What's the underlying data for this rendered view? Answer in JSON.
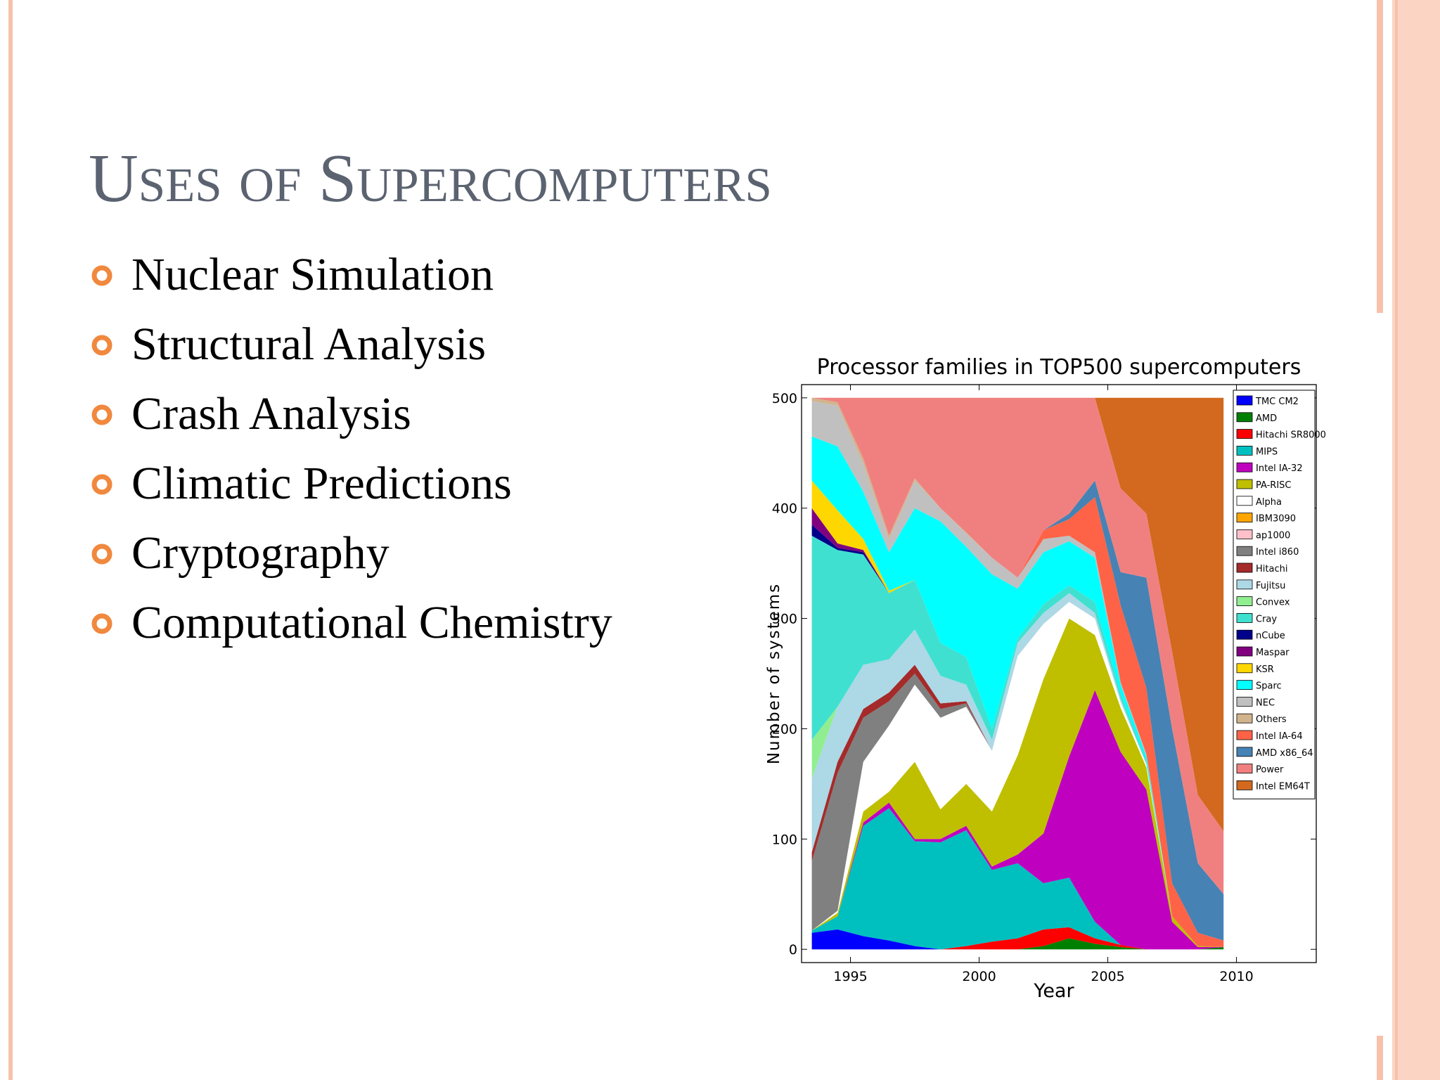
{
  "slide": {
    "title": "Uses of Supercomputers",
    "bullets": [
      "Nuclear Simulation",
      "Structural Analysis",
      "Crash Analysis",
      "Climatic Predictions",
      "Cryptography",
      "Computational Chemistry"
    ]
  },
  "chart_data": {
    "type": "stacked_area",
    "title": "Processor families in TOP500 supercomputers",
    "x_label": "Year",
    "y_label": "Number of systems",
    "x": [
      1993.5,
      1994.5,
      1995.5,
      1996.5,
      1997.5,
      1998.5,
      1999.5,
      2000.5,
      2001.5,
      2002.5,
      2003.5,
      2004.5,
      2005.5,
      2006.5,
      2007.5,
      2008.5,
      2009.5
    ],
    "xlim": [
      1993.1,
      2013.1
    ],
    "xticks": [
      1995,
      2000,
      2005,
      2010
    ],
    "ylim": [
      -12,
      512
    ],
    "yticks": [
      0,
      100,
      200,
      300,
      400,
      500
    ],
    "grid": false,
    "legend": "upper right",
    "series": [
      {
        "name": "TMC CM2",
        "color": "#0000ff",
        "values": [
          15,
          18,
          12,
          8,
          3,
          0,
          0,
          0,
          0,
          0,
          0,
          0,
          0,
          0,
          0,
          0,
          0
        ]
      },
      {
        "name": "AMD",
        "color": "#008000",
        "values": [
          0,
          0,
          0,
          0,
          0,
          0,
          0,
          0,
          0,
          3,
          10,
          5,
          2,
          0,
          0,
          0,
          2
        ]
      },
      {
        "name": "Hitachi SR8000",
        "color": "#ff0000",
        "values": [
          0,
          0,
          0,
          0,
          0,
          0,
          3,
          7,
          10,
          15,
          10,
          5,
          2,
          0,
          0,
          0,
          0
        ]
      },
      {
        "name": "MIPS",
        "color": "#00bfbf",
        "values": [
          2,
          12,
          100,
          120,
          95,
          97,
          105,
          65,
          68,
          42,
          45,
          15,
          0,
          0,
          0,
          0,
          0
        ]
      },
      {
        "name": "Intel IA-32",
        "color": "#bf00bf",
        "values": [
          0,
          0,
          3,
          5,
          2,
          3,
          4,
          3,
          8,
          45,
          110,
          210,
          175,
          145,
          25,
          2,
          0
        ]
      },
      {
        "name": "PA-RISC",
        "color": "#bfbf00",
        "values": [
          0,
          3,
          10,
          10,
          70,
          27,
          38,
          50,
          90,
          140,
          125,
          50,
          40,
          20,
          5,
          1,
          0
        ]
      },
      {
        "name": "Alpha",
        "color": "#ffffff",
        "values": [
          0,
          2,
          45,
          60,
          70,
          83,
          70,
          55,
          90,
          50,
          15,
          15,
          5,
          3,
          0,
          0,
          0
        ]
      },
      {
        "name": "IBM3090",
        "color": "#ffa500",
        "values": [
          0,
          0,
          0,
          0,
          0,
          0,
          0,
          0,
          0,
          0,
          0,
          0,
          0,
          0,
          0,
          0,
          0
        ]
      },
      {
        "name": "ap1000",
        "color": "#ffc0cb",
        "values": [
          0,
          0,
          0,
          0,
          0,
          0,
          0,
          0,
          0,
          0,
          0,
          0,
          0,
          0,
          0,
          0,
          0
        ]
      },
      {
        "name": "Intel i860",
        "color": "#808080",
        "values": [
          63,
          125,
          40,
          22,
          10,
          8,
          3,
          0,
          0,
          0,
          0,
          0,
          0,
          0,
          0,
          0,
          0
        ]
      },
      {
        "name": "Hitachi",
        "color": "#a52a2a",
        "values": [
          8,
          10,
          8,
          8,
          8,
          5,
          2,
          0,
          0,
          0,
          0,
          0,
          0,
          0,
          0,
          0,
          0
        ]
      },
      {
        "name": "Fujitsu",
        "color": "#add8e6",
        "values": [
          67,
          50,
          40,
          30,
          32,
          25,
          15,
          10,
          12,
          10,
          8,
          5,
          3,
          0,
          0,
          0,
          0
        ]
      },
      {
        "name": "Convex",
        "color": "#90ee90",
        "values": [
          35,
          0,
          0,
          0,
          0,
          0,
          0,
          0,
          0,
          0,
          0,
          0,
          0,
          0,
          0,
          0,
          0
        ]
      },
      {
        "name": "Cray",
        "color": "#40e0d0",
        "values": [
          185,
          142,
          100,
          60,
          45,
          30,
          25,
          10,
          4,
          8,
          7,
          10,
          5,
          3,
          0,
          0,
          0
        ]
      },
      {
        "name": "nCube",
        "color": "#00008b",
        "values": [
          10,
          2,
          2,
          0,
          0,
          0,
          0,
          0,
          0,
          0,
          0,
          0,
          0,
          0,
          0,
          0,
          0
        ]
      },
      {
        "name": "Maspar",
        "color": "#800080",
        "values": [
          15,
          4,
          2,
          0,
          0,
          0,
          0,
          0,
          0,
          0,
          0,
          0,
          0,
          0,
          0,
          0,
          0
        ]
      },
      {
        "name": "KSR",
        "color": "#ffd700",
        "values": [
          25,
          30,
          10,
          2,
          0,
          0,
          0,
          0,
          0,
          0,
          0,
          0,
          0,
          0,
          0,
          0,
          0
        ]
      },
      {
        "name": "Sparc",
        "color": "#00ffff",
        "values": [
          40,
          58,
          43,
          35,
          65,
          110,
          100,
          140,
          45,
          47,
          40,
          40,
          8,
          4,
          0,
          0,
          0
        ]
      },
      {
        "name": "NEC",
        "color": "#c0c0c0",
        "values": [
          32,
          37,
          25,
          12,
          25,
          12,
          12,
          15,
          10,
          12,
          5,
          5,
          2,
          2,
          0,
          0,
          0
        ]
      },
      {
        "name": "Others",
        "color": "#d2b48c",
        "values": [
          3,
          3,
          5,
          3,
          2,
          0,
          1,
          0,
          0,
          0,
          0,
          0,
          0,
          0,
          0,
          0,
          0
        ]
      },
      {
        "name": "Intel IA-64",
        "color": "#ff6347",
        "values": [
          0,
          0,
          0,
          0,
          0,
          0,
          0,
          0,
          0,
          8,
          15,
          50,
          70,
          60,
          30,
          12,
          6
        ]
      },
      {
        "name": "AMD x86_64",
        "color": "#4682b4",
        "values": [
          0,
          0,
          0,
          0,
          0,
          0,
          0,
          0,
          0,
          0,
          5,
          15,
          30,
          100,
          140,
          63,
          42
        ]
      },
      {
        "name": "Power",
        "color": "#f08080",
        "values": [
          0,
          4,
          55,
          125,
          73,
          100,
          122,
          145,
          163,
          120,
          105,
          75,
          76,
          58,
          70,
          62,
          57
        ]
      },
      {
        "name": "Intel EM64T",
        "color": "#d2691e",
        "values": [
          0,
          0,
          0,
          0,
          0,
          0,
          0,
          0,
          0,
          0,
          0,
          0,
          82,
          105,
          230,
          360,
          393
        ]
      }
    ]
  }
}
